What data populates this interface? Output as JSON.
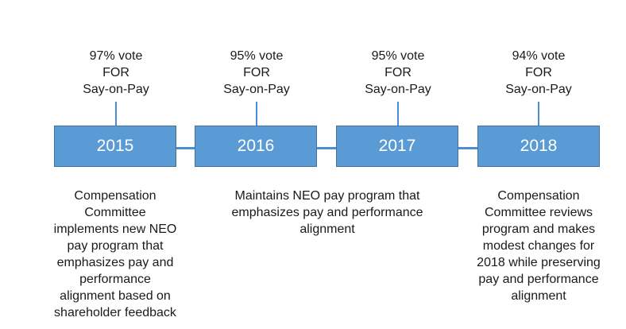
{
  "colors": {
    "box_fill": "#5b9bd5",
    "box_border": "#41719c",
    "line": "#4a8fd6",
    "text": "#1a1a1a"
  },
  "timeline": [
    {
      "year": "2015",
      "vote": [
        "97% vote",
        "FOR",
        "Say-on-Pay"
      ]
    },
    {
      "year": "2016",
      "vote": [
        "95% vote",
        "FOR",
        "Say-on-Pay"
      ]
    },
    {
      "year": "2017",
      "vote": [
        "95% vote",
        "FOR",
        "Say-on-Pay"
      ]
    },
    {
      "year": "2018",
      "vote": [
        "94% vote",
        "FOR",
        "Say-on-Pay"
      ]
    }
  ],
  "descriptions": {
    "left": [
      "Compensation",
      "Committee",
      "implements new NEO",
      "pay program that",
      "emphasizes pay and",
      "performance",
      "alignment based on",
      "shareholder feedback"
    ],
    "middle": [
      "Maintains NEO pay program that",
      "emphasizes pay and performance",
      "alignment"
    ],
    "right": [
      "Compensation",
      "Committee reviews",
      "program and makes",
      "modest changes for",
      "2018 while preserving",
      "pay and performance",
      "alignment"
    ]
  }
}
